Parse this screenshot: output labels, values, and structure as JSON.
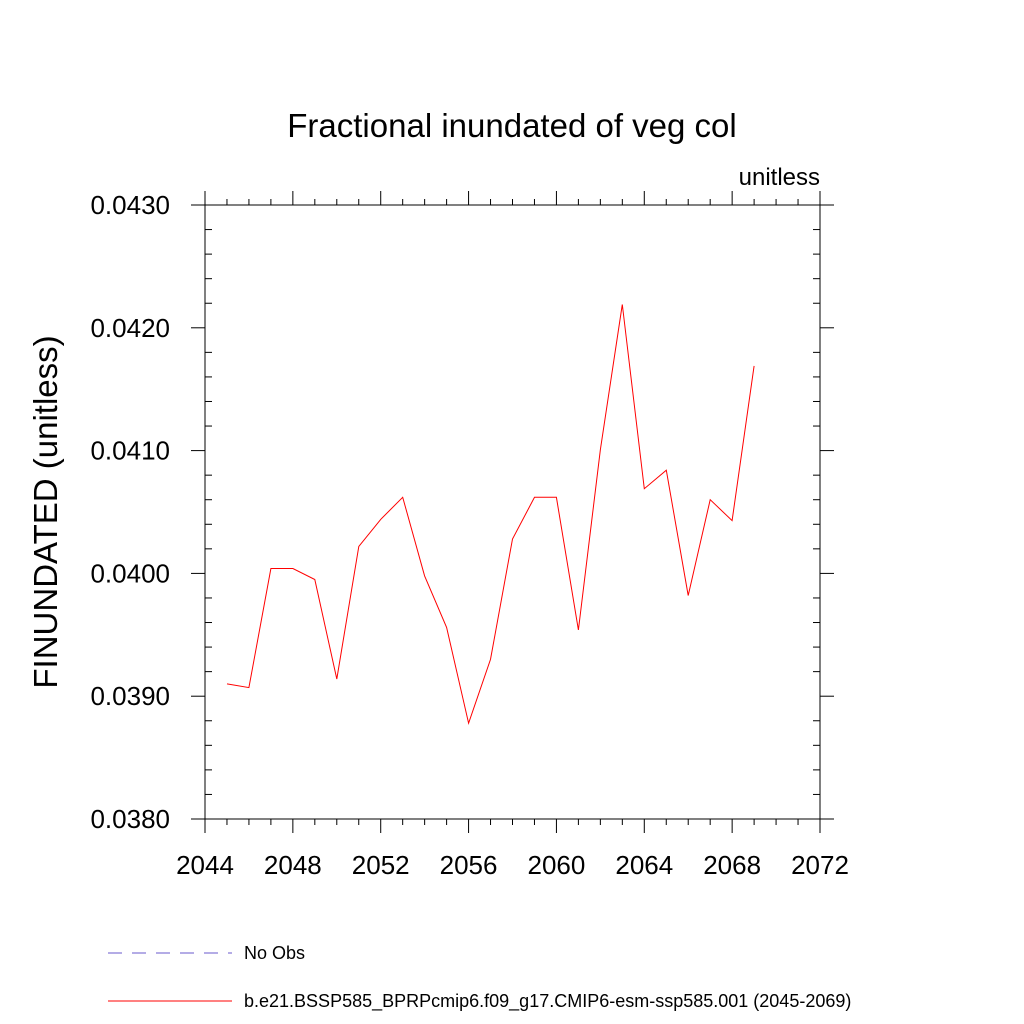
{
  "chart_data": {
    "type": "line",
    "title": "Fractional inundated of veg col",
    "units_label": "unitless",
    "ylabel": "FINUNDATED  (unitless)",
    "xlabel": "",
    "xlim": [
      2044,
      2072
    ],
    "ylim": [
      0.038,
      0.043
    ],
    "x_ticks": [
      "2044",
      "2048",
      "2052",
      "2056",
      "2060",
      "2064",
      "2068",
      "2072"
    ],
    "y_ticks": [
      "0.0380",
      "0.0390",
      "0.0400",
      "0.0410",
      "0.0420",
      "0.0430"
    ],
    "grid": false,
    "legend": [
      {
        "label": "No Obs",
        "style": "dashed",
        "color": "#6a5acd"
      },
      {
        "label": "b.e21.BSSP585_BPRPcmip6.f09_g17.CMIP6-esm-ssp585.001 (2045-2069)",
        "style": "solid",
        "color": "#ff0000"
      }
    ],
    "series": [
      {
        "name": "b.e21.BSSP585_BPRPcmip6.f09_g17.CMIP6-esm-ssp585.001 (2045-2069)",
        "color": "#ff0000",
        "x": [
          2045,
          2046,
          2047,
          2048,
          2049,
          2050,
          2051,
          2052,
          2053,
          2054,
          2055,
          2056,
          2057,
          2058,
          2059,
          2060,
          2061,
          2062,
          2063,
          2064,
          2065,
          2066,
          2067,
          2068,
          2069
        ],
        "values": [
          0.0391,
          0.03907,
          0.04004,
          0.04004,
          0.03995,
          0.03914,
          0.04022,
          0.04044,
          0.04062,
          0.03998,
          0.03956,
          0.03878,
          0.0393,
          0.04028,
          0.04062,
          0.04062,
          0.03954,
          0.04101,
          0.04219,
          0.04069,
          0.04084,
          0.03982,
          0.0406,
          0.04043,
          0.04169
        ]
      }
    ]
  }
}
